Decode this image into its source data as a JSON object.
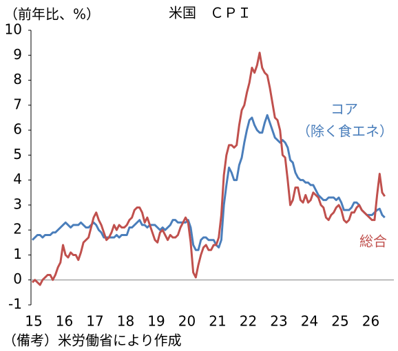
{
  "chart_data": {
    "type": "line",
    "title": "米国　ＣＰＩ",
    "y_label": "（前年比、%）",
    "source": "（備考）米労働省により作成",
    "categories": [
      "15",
      null,
      null,
      null,
      null,
      null,
      null,
      null,
      null,
      null,
      null,
      null,
      "16",
      null,
      null,
      null,
      null,
      null,
      null,
      null,
      null,
      null,
      null,
      null,
      "17",
      null,
      null,
      null,
      null,
      null,
      null,
      null,
      null,
      null,
      null,
      null,
      "18",
      null,
      null,
      null,
      null,
      null,
      null,
      null,
      null,
      null,
      null,
      null,
      "19",
      null,
      null,
      null,
      null,
      null,
      null,
      null,
      null,
      null,
      null,
      null,
      "20",
      null,
      null,
      null,
      null,
      null,
      null,
      null,
      null,
      null,
      null,
      null,
      "21",
      null,
      null,
      null,
      null,
      null,
      null,
      null,
      null,
      null,
      null,
      null,
      "22",
      null,
      null,
      null,
      null,
      null,
      null,
      null,
      null,
      null,
      null,
      null,
      "23",
      null,
      null,
      null,
      null,
      null,
      null,
      null,
      null,
      null,
      null,
      null,
      "24",
      null,
      null,
      null,
      null,
      null,
      null,
      null,
      null,
      null,
      null,
      null,
      "25",
      null,
      null,
      null,
      null,
      null,
      null,
      null,
      null,
      null,
      null,
      null,
      "26",
      null,
      null,
      null,
      null,
      null,
      null
    ],
    "series": [
      {
        "name": "コア",
        "name_note": "（除く食エネ）",
        "color": "#4a7ebb",
        "values": [
          1.6,
          1.7,
          1.8,
          1.8,
          1.7,
          1.8,
          1.8,
          1.8,
          1.9,
          1.9,
          2.0,
          2.1,
          2.2,
          2.3,
          2.2,
          2.1,
          2.2,
          2.2,
          2.2,
          2.3,
          2.2,
          2.1,
          2.1,
          2.2,
          2.3,
          2.2,
          2.0,
          1.9,
          1.7,
          1.7,
          1.7,
          1.7,
          1.7,
          1.8,
          1.7,
          1.8,
          1.8,
          1.8,
          2.1,
          2.1,
          2.2,
          2.3,
          2.4,
          2.2,
          2.2,
          2.1,
          2.2,
          2.2,
          2.2,
          2.1,
          2.0,
          2.1,
          2.0,
          2.1,
          2.2,
          2.4,
          2.4,
          2.3,
          2.3,
          2.3,
          2.3,
          2.4,
          2.1,
          1.4,
          1.2,
          1.2,
          1.6,
          1.7,
          1.7,
          1.6,
          1.6,
          1.6,
          1.4,
          1.3,
          1.6,
          3.0,
          3.8,
          4.5,
          4.3,
          4.0,
          4.0,
          4.6,
          4.9,
          5.5,
          6.0,
          6.4,
          6.5,
          6.2,
          6.0,
          5.9,
          5.9,
          6.3,
          6.6,
          6.3,
          6.0,
          5.7,
          5.6,
          5.5,
          5.6,
          5.5,
          5.3,
          4.8,
          4.7,
          4.3,
          4.1,
          4.0,
          4.0,
          3.9,
          3.9,
          3.8,
          3.8,
          3.6,
          3.4,
          3.3,
          3.2,
          3.2,
          3.3,
          3.3,
          3.3,
          3.2,
          3.3,
          3.1,
          2.8,
          2.8,
          2.8,
          2.9,
          3.1,
          3.1,
          3.0,
          2.8,
          2.7,
          2.6,
          2.6,
          2.6,
          2.7,
          2.8,
          2.85,
          2.6,
          2.5
        ]
      },
      {
        "name": "総合",
        "color": "#c0504d",
        "values": [
          -0.1,
          0.0,
          -0.1,
          -0.2,
          0.0,
          0.1,
          0.2,
          0.2,
          0.0,
          0.2,
          0.5,
          0.7,
          1.4,
          1.0,
          0.9,
          1.1,
          1.0,
          1.0,
          0.8,
          1.1,
          1.5,
          1.6,
          1.7,
          2.1,
          2.5,
          2.7,
          2.4,
          2.2,
          1.9,
          1.6,
          1.7,
          1.9,
          2.2,
          2.0,
          2.2,
          2.1,
          2.1,
          2.2,
          2.4,
          2.5,
          2.8,
          2.9,
          2.9,
          2.7,
          2.3,
          2.5,
          2.2,
          1.9,
          1.6,
          1.5,
          1.9,
          2.0,
          1.8,
          1.6,
          1.8,
          1.7,
          1.7,
          1.8,
          2.1,
          2.3,
          2.5,
          2.3,
          1.5,
          0.3,
          0.1,
          0.6,
          1.0,
          1.3,
          1.4,
          1.2,
          1.2,
          1.4,
          1.4,
          1.7,
          2.6,
          4.2,
          5.0,
          5.4,
          5.4,
          5.3,
          5.4,
          6.2,
          6.8,
          7.0,
          7.5,
          7.9,
          8.5,
          8.3,
          8.6,
          9.1,
          8.5,
          8.3,
          8.2,
          7.7,
          7.1,
          6.5,
          6.4,
          6.0,
          5.0,
          4.9,
          4.0,
          3.0,
          3.2,
          3.7,
          3.7,
          3.2,
          3.1,
          3.4,
          3.1,
          3.2,
          3.5,
          3.4,
          3.3,
          3.0,
          2.9,
          2.5,
          2.4,
          2.6,
          2.7,
          2.9,
          3.0,
          2.8,
          2.4,
          2.3,
          2.4,
          2.7,
          2.7,
          2.9,
          3.0,
          2.8,
          2.7,
          2.6,
          2.5,
          2.4,
          2.4,
          3.4,
          4.25,
          3.5,
          3.35
        ]
      }
    ],
    "ylim": [
      -1,
      10
    ],
    "yticks": [
      -1,
      0,
      1,
      2,
      3,
      4,
      5,
      6,
      7,
      8,
      9,
      10
    ],
    "grid": false
  }
}
